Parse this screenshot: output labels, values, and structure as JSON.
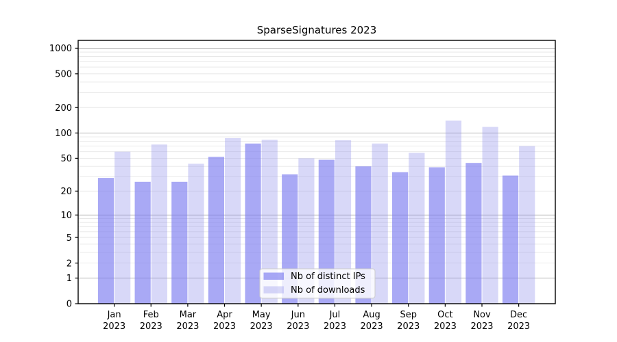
{
  "chart_data": {
    "type": "bar",
    "title": "SparseSignatures 2023",
    "categories": [
      "Jan",
      "Feb",
      "Mar",
      "Apr",
      "May",
      "Jun",
      "Jul",
      "Aug",
      "Sep",
      "Oct",
      "Nov",
      "Dec"
    ],
    "category_year": "2023",
    "series": [
      {
        "name": "Nb of distinct IPs",
        "color": "rgba(123,123,240,0.65)",
        "values": [
          29,
          26,
          26,
          52,
          75,
          32,
          48,
          40,
          34,
          39,
          44,
          31
        ]
      },
      {
        "name": "Nb of downloads",
        "color": "rgba(144,144,235,0.35)",
        "values": [
          60,
          73,
          43,
          87,
          83,
          50,
          82,
          75,
          58,
          140,
          118,
          70
        ]
      }
    ],
    "y_scale": "log10(1+x)",
    "y_tick_values": [
      0,
      1,
      2,
      5,
      10,
      20,
      50,
      100,
      200,
      500,
      1000
    ],
    "y_tick_labels": [
      "0",
      "1",
      "2",
      "5",
      "10",
      "20",
      "50",
      "100",
      "200",
      "500",
      "1000"
    ],
    "major_grid_values": [
      1,
      10,
      100,
      1000
    ],
    "minor_grid_values": [
      2,
      3,
      4,
      5,
      6,
      7,
      8,
      9,
      20,
      30,
      40,
      50,
      60,
      70,
      80,
      90,
      200,
      300,
      400,
      500,
      600,
      700,
      800,
      900
    ],
    "ylim": [
      0,
      1236
    ],
    "grid": "both",
    "legend": {
      "position": "lower center",
      "entries": [
        "Nb of distinct IPs",
        "Nb of downloads"
      ]
    }
  },
  "colors": {
    "bar_distinct_ips": "rgba(123,123,240,0.65)",
    "bar_downloads": "rgba(144,144,235,0.35)",
    "major_gridline": "#b0b0b0",
    "minor_gridline": "#e7e7e7",
    "axis": "#000000",
    "text": "#000000",
    "legend_background": "rgba(255,255,255,0.8)",
    "legend_border": "#cccccc"
  }
}
